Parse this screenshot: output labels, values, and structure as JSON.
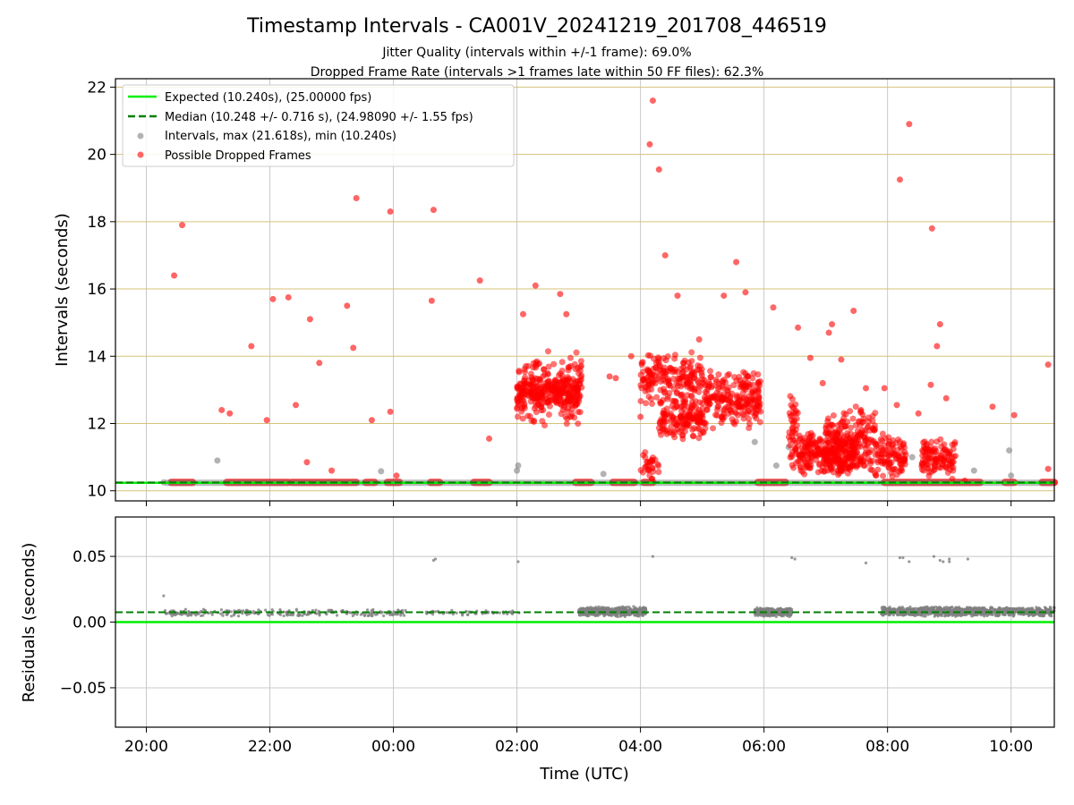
{
  "title": "Timestamp Intervals - CA001V_20241219_201708_446519",
  "subtitle_1": "Jitter Quality (intervals within +/-1 frame): 69.0%",
  "subtitle_2": "Dropped Frame Rate (intervals >1 frames late within 50 FF files): 62.3%",
  "colors": {
    "expected": "#00ee00",
    "median": "#008000",
    "intervals": "#808080",
    "dropped": "#ff0000",
    "h_grid_top": "#d4c37a",
    "grid": "#c8c8c8"
  },
  "chart_data": [
    {
      "type": "scatter",
      "title": "Timestamp Intervals - CA001V_20241219_201708_446519",
      "ylabel": "Intervals (seconds)",
      "xlabel": "",
      "xlim_hours": [
        19.5,
        34.7
      ],
      "ylim": [
        9.7,
        22.25
      ],
      "yticks": [
        10,
        12,
        14,
        16,
        18,
        20,
        22
      ],
      "grid": true,
      "legend_position": "upper-left",
      "legend": [
        "Expected (10.240s), (25.00000 fps)",
        "Median (10.248 +/- 0.716 s), (24.98090 +/- 1.55 fps)",
        "Intervals, max (21.618s), min (10.240s)",
        "Possible Dropped Frames"
      ],
      "expected_y": 10.24,
      "median_y": 10.248,
      "series": [
        {
          "name": "Intervals, max (21.618s), min (10.240s)",
          "points": [
            [
              20.28,
              10.25
            ],
            [
              21.15,
              10.9
            ],
            [
              23.8,
              10.58
            ],
            [
              26.0,
              10.6
            ],
            [
              26.02,
              10.75
            ],
            [
              27.4,
              10.5
            ],
            [
              29.85,
              11.45
            ],
            [
              30.2,
              10.75
            ],
            [
              32.4,
              11.0
            ],
            [
              33.4,
              10.6
            ],
            [
              33.97,
              11.2
            ],
            [
              34.0,
              10.45
            ],
            [
              30.4,
              11.3
            ]
          ]
        },
        {
          "name": "Possible Dropped Frames",
          "points": [
            [
              20.45,
              16.4
            ],
            [
              20.58,
              17.9
            ],
            [
              21.22,
              12.4
            ],
            [
              21.35,
              12.3
            ],
            [
              21.7,
              14.3
            ],
            [
              21.95,
              12.1
            ],
            [
              22.05,
              15.7
            ],
            [
              22.3,
              15.75
            ],
            [
              22.42,
              12.55
            ],
            [
              22.6,
              10.85
            ],
            [
              22.65,
              15.1
            ],
            [
              22.8,
              13.8
            ],
            [
              23.0,
              10.6
            ],
            [
              23.25,
              15.5
            ],
            [
              23.35,
              14.25
            ],
            [
              23.4,
              18.7
            ],
            [
              23.65,
              12.1
            ],
            [
              23.95,
              18.3
            ],
            [
              23.95,
              12.35
            ],
            [
              24.05,
              10.45
            ],
            [
              24.65,
              18.35
            ],
            [
              24.62,
              15.65
            ],
            [
              25.4,
              16.25
            ],
            [
              25.55,
              11.55
            ],
            [
              26.3,
              16.1
            ],
            [
              26.7,
              15.85
            ],
            [
              26.8,
              15.25
            ],
            [
              26.1,
              15.25
            ],
            [
              27.5,
              13.4
            ],
            [
              27.6,
              13.35
            ],
            [
              27.85,
              14.0
            ],
            [
              28.0,
              12.2
            ],
            [
              28.15,
              20.3
            ],
            [
              28.2,
              21.6
            ],
            [
              28.3,
              19.55
            ],
            [
              28.4,
              17.0
            ],
            [
              28.6,
              15.8
            ],
            [
              28.95,
              14.5
            ],
            [
              29.35,
              15.8
            ],
            [
              29.55,
              16.8
            ],
            [
              29.7,
              15.9
            ],
            [
              29.85,
              12.7
            ],
            [
              30.15,
              15.45
            ],
            [
              30.55,
              14.85
            ],
            [
              30.75,
              13.95
            ],
            [
              30.95,
              13.2
            ],
            [
              31.05,
              14.7
            ],
            [
              31.1,
              14.95
            ],
            [
              31.25,
              13.9
            ],
            [
              31.45,
              15.35
            ],
            [
              31.65,
              13.05
            ],
            [
              31.95,
              13.05
            ],
            [
              32.15,
              12.55
            ],
            [
              32.2,
              19.25
            ],
            [
              32.35,
              20.9
            ],
            [
              32.5,
              12.3
            ],
            [
              32.7,
              13.15
            ],
            [
              32.72,
              17.8
            ],
            [
              32.8,
              14.3
            ],
            [
              32.85,
              14.95
            ],
            [
              32.95,
              12.75
            ],
            [
              33.25,
              10.3
            ],
            [
              33.7,
              12.5
            ],
            [
              34.05,
              12.25
            ],
            [
              34.6,
              13.75
            ],
            [
              34.6,
              10.65
            ]
          ],
          "clusters": [
            {
              "x_range": [
                26.0,
                27.05
              ],
              "y_range": [
                11.8,
                14.2
              ],
              "count": 220
            },
            {
              "x_range": [
                26.0,
                27.05
              ],
              "y_range": [
                12.4,
                13.4
              ],
              "count": 150
            },
            {
              "x_range": [
                28.0,
                29.0
              ],
              "y_range": [
                12.5,
                14.2
              ],
              "count": 180
            },
            {
              "x_range": [
                28.3,
                29.05
              ],
              "y_range": [
                11.5,
                12.8
              ],
              "count": 150
            },
            {
              "x_range": [
                29.0,
                29.95
              ],
              "y_range": [
                11.8,
                13.6
              ],
              "count": 220
            },
            {
              "x_range": [
                28.0,
                28.3
              ],
              "y_range": [
                10.3,
                11.2
              ],
              "count": 30
            },
            {
              "x_range": [
                30.4,
                30.55
              ],
              "y_range": [
                10.3,
                13.2
              ],
              "count": 45
            },
            {
              "x_range": [
                30.55,
                31.5
              ],
              "y_range": [
                10.4,
                11.8
              ],
              "count": 260
            },
            {
              "x_range": [
                31.0,
                31.8
              ],
              "y_range": [
                10.4,
                12.6
              ],
              "count": 200
            },
            {
              "x_range": [
                31.8,
                32.3
              ],
              "y_range": [
                10.3,
                11.8
              ],
              "count": 100
            },
            {
              "x_range": [
                32.55,
                33.1
              ],
              "y_range": [
                10.3,
                11.6
              ],
              "count": 110
            }
          ],
          "baseline_segments": [
            [
              20.4,
              20.75
            ],
            [
              21.3,
              22.3
            ],
            [
              22.35,
              23.4
            ],
            [
              23.55,
              23.7
            ],
            [
              23.9,
              24.1
            ],
            [
              24.6,
              24.75
            ],
            [
              25.3,
              25.55
            ],
            [
              26.95,
              27.2
            ],
            [
              27.55,
              27.9
            ],
            [
              28.05,
              28.2
            ],
            [
              29.9,
              30.35
            ],
            [
              31.95,
              33.5
            ],
            [
              33.9,
              34.05
            ],
            [
              34.5,
              34.7
            ]
          ],
          "baseline_y": 10.25
        }
      ]
    },
    {
      "type": "scatter",
      "ylabel": "Residuals (seconds)",
      "xlabel": "Time (UTC)",
      "xlim_hours": [
        19.5,
        34.7
      ],
      "ylim": [
        -0.08,
        0.08
      ],
      "yticks": [
        0.05,
        0.0,
        -0.05
      ],
      "ytick_labels": [
        "0.05",
        "0.00",
        "−0.05"
      ],
      "xticks_hours": [
        20,
        22,
        24,
        26,
        28,
        30,
        32,
        34
      ],
      "xtick_labels": [
        "20:00",
        "22:00",
        "00:00",
        "02:00",
        "04:00",
        "06:00",
        "08:00",
        "10:00"
      ],
      "expected_y": 0.0,
      "median_y": 0.0075,
      "series": [
        {
          "name": "Residuals",
          "points": [
            [
              20.28,
              0.02
            ],
            [
              24.65,
              0.047
            ],
            [
              24.68,
              0.048
            ],
            [
              26.02,
              0.046
            ],
            [
              28.2,
              0.05
            ],
            [
              30.45,
              0.049
            ],
            [
              30.5,
              0.048
            ],
            [
              31.65,
              0.045
            ],
            [
              32.2,
              0.049
            ],
            [
              32.25,
              0.049
            ],
            [
              32.35,
              0.046
            ],
            [
              32.75,
              0.05
            ],
            [
              32.85,
              0.047
            ],
            [
              32.9,
              0.046
            ],
            [
              33.0,
              0.048
            ],
            [
              33.0,
              0.046
            ],
            [
              33.3,
              0.048
            ],
            [
              32.45,
              0.0105
            ]
          ],
          "bands": [
            {
              "x_range": [
                20.3,
                24.2
              ],
              "y_range": [
                0.004,
                0.01
              ],
              "count": 260
            },
            {
              "x_range": [
                24.5,
                26.05
              ],
              "y_range": [
                0.005,
                0.009
              ],
              "count": 60
            },
            {
              "x_range": [
                27.0,
                28.1
              ],
              "y_range": [
                0.004,
                0.012
              ],
              "count": 520
            },
            {
              "x_range": [
                29.85,
                30.45
              ],
              "y_range": [
                0.004,
                0.011
              ],
              "count": 300
            },
            {
              "x_range": [
                31.9,
                34.7
              ],
              "y_range": [
                0.004,
                0.012
              ],
              "count": 1100
            }
          ]
        }
      ]
    }
  ]
}
